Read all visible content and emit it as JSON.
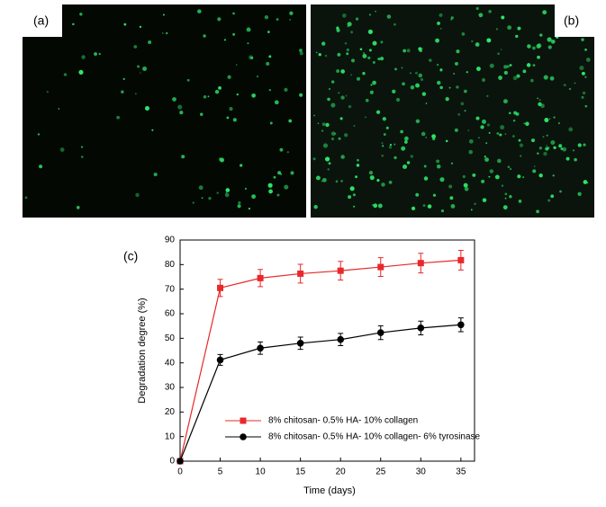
{
  "panels": [
    {
      "label": "(a)"
    },
    {
      "label": "(b)"
    }
  ],
  "chart_data": {
    "type": "line",
    "label": "(c)",
    "xlabel": "Time (days)",
    "ylabel": "Degradation degree (%)",
    "x": [
      0,
      5,
      10,
      15,
      20,
      25,
      30,
      35
    ],
    "xlim": [
      0,
      36.7
    ],
    "xticks": [
      0,
      5,
      10,
      15,
      20,
      25,
      30,
      35
    ],
    "ylim": [
      0,
      90
    ],
    "yticks": [
      0,
      10,
      20,
      30,
      40,
      50,
      60,
      70,
      80,
      90
    ],
    "legend": "lower right",
    "series": [
      {
        "name": "8% chitosan- 0.5% HA- 10% collagen",
        "color": "#e8282a",
        "marker": "square",
        "values": [
          0,
          70.5,
          74.5,
          76.3,
          77.5,
          79,
          80.6,
          81.8
        ],
        "errors": [
          null,
          3.5,
          3.5,
          3.8,
          3.8,
          3.8,
          4,
          4
        ]
      },
      {
        "name": "8% chitosan- 0.5% HA- 10% collagen- 6% tyrosinase",
        "color": "#000000",
        "marker": "circle",
        "values": [
          0,
          41.2,
          46,
          48,
          49.5,
          52.3,
          54.2,
          55.5
        ],
        "errors": [
          null,
          2.2,
          2.5,
          2.5,
          2.5,
          2.8,
          2.8,
          2.8
        ]
      }
    ]
  }
}
